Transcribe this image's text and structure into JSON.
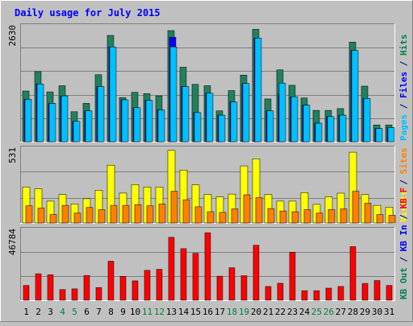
{
  "chart_data": {
    "type": "bar",
    "title": "Daily usage for July 2015",
    "categories": [
      "1",
      "2",
      "3",
      "4",
      "5",
      "6",
      "7",
      "8",
      "9",
      "10",
      "11",
      "12",
      "13",
      "14",
      "15",
      "16",
      "17",
      "18",
      "19",
      "20",
      "21",
      "22",
      "23",
      "24",
      "25",
      "26",
      "27",
      "28",
      "29",
      "30",
      "31"
    ],
    "weekend_days": [
      "4",
      "5",
      "11",
      "12",
      "18",
      "19",
      "25",
      "26"
    ],
    "panels": [
      {
        "id": "top",
        "ymax": 2630,
        "ymax_label": "2630",
        "axis_label_parts": [
          {
            "text": "Pages",
            "color": "#00c0ff"
          },
          {
            "text": " / ",
            "color": "#000080"
          },
          {
            "text": "Files",
            "color": "#0000ff"
          },
          {
            "text": " / ",
            "color": "#000080"
          },
          {
            "text": "Hits",
            "color": "#008050"
          }
        ],
        "series": [
          {
            "name": "Hits",
            "color": "#208060",
            "values": [
              1150,
              1590,
              1130,
              1270,
              680,
              870,
              1520,
              2410,
              1000,
              1120,
              1090,
              1040,
              2520,
              1690,
              1300,
              1270,
              700,
              1160,
              1510,
              2550,
              970,
              1630,
              1280,
              990,
              710,
              710,
              750,
              2260,
              1260,
              380,
              380
            ]
          },
          {
            "name": "Files",
            "color": "#0000ff",
            "values": [
              960,
              1310,
              870,
              1040,
              460,
              700,
              1250,
              2150,
              950,
              770,
              940,
              720,
              2370,
              1250,
              660,
              1100,
              600,
              900,
              1320,
              2350,
              700,
              1080,
              1020,
              830,
              420,
              570,
              600,
              2070,
              980,
              300,
              320
            ]
          },
          {
            "name": "Pages",
            "color": "#00c0ff",
            "values": [
              960,
              1310,
              870,
              1040,
              460,
              700,
              1250,
              2150,
              950,
              770,
              940,
              720,
              2150,
              1250,
              660,
              1100,
              600,
              900,
              1320,
              2350,
              700,
              1330,
              1020,
              830,
              420,
              570,
              600,
              2070,
              980,
              300,
              320
            ]
          }
        ]
      },
      {
        "id": "middle",
        "ymax": 531,
        "ymax_label": "531",
        "axis_label_parts": [
          {
            "text": "Visits",
            "color": "#ffff00"
          },
          {
            "text": " / ",
            "color": "#000080"
          },
          {
            "text": "Sites",
            "color": "#ff8000"
          }
        ],
        "series": [
          {
            "name": "Visits",
            "color": "#ffff00",
            "values": [
              255,
              242,
              155,
              202,
              135,
              172,
              232,
              410,
              212,
              272,
              255,
              255,
              515,
              375,
              270,
              202,
              185,
              205,
              405,
              455,
              202,
              155,
              155,
              215,
              132,
              185,
              211,
              502,
              202,
              125,
              112
            ]
          },
          {
            "name": "Sites",
            "color": "#ff8000",
            "values": [
              122,
              105,
              60,
              125,
              70,
              110,
              95,
              125,
              125,
              130,
              122,
              135,
              225,
              165,
              115,
              80,
              75,
              100,
              200,
              180,
              102,
              85,
              80,
              95,
              70,
              95,
              100,
              225,
              140,
              60,
              55
            ]
          }
        ]
      },
      {
        "id": "bottom",
        "ymax": 46784,
        "ymax_label": "46784",
        "axis_label_parts": [
          {
            "text": "KB Out",
            "color": "#008050"
          },
          {
            "text": " / ",
            "color": "#000080"
          },
          {
            "text": "KB In",
            "color": "#0000ff"
          },
          {
            "text": " / ",
            "color": "#000080"
          },
          {
            "text": "KB F",
            "color": "#ff0000"
          }
        ],
        "series": [
          {
            "name": "KB F",
            "color": "#ff0000",
            "values": [
              9800,
              17500,
              16800,
              7000,
              7500,
              16400,
              8400,
              25800,
              15800,
              12800,
              19700,
              20400,
              41600,
              34100,
              31000,
              44600,
              15900,
              21500,
              16200,
              36300,
              9100,
              11200,
              31700,
              6300,
              6300,
              8000,
              9100,
              35400,
              11100,
              13000,
              9800
            ]
          }
        ]
      }
    ]
  }
}
